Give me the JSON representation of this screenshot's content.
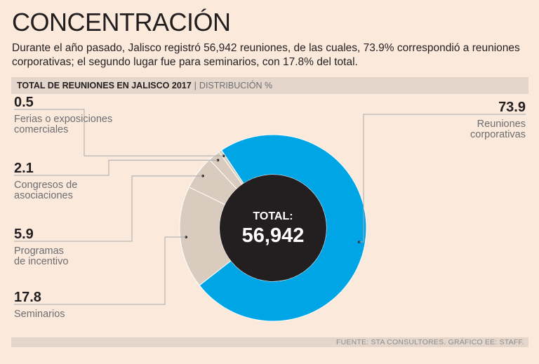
{
  "header": {
    "title": "CONCENTRACIÓN",
    "subtitle": "Durante el año pasado, Jalisco registró 56,942 reuniones, de las cuales, 73.9% correspondió a reuniones corporativas; el segundo lugar fue para seminarios, con 17.8% del total."
  },
  "bar": {
    "main": "TOTAL DE REUNIONES EN JALISCO 2017",
    "separator": "|",
    "sub": "DISTRIBUCIÓN %"
  },
  "footer": {
    "source": "FUENTE: STA CONSULTORES. GRÁFICO EE: STAFF."
  },
  "colors": {
    "primary": "#00a5e5",
    "secondary": "#d9cbbd",
    "center": "#231f20",
    "background": "#fbe9dc"
  },
  "chart_data": {
    "type": "pie",
    "variant": "donut",
    "title": "TOTAL DE REUNIONES EN JALISCO 2017",
    "subtitle": "DISTRIBUCIÓN %",
    "center_label": "TOTAL:",
    "center_value": "56,942",
    "slices": [
      {
        "name": "Reuniones corporativas",
        "label_lines": [
          "Reuniones",
          "corporativas"
        ],
        "value": 73.9,
        "value_text": "73.9"
      },
      {
        "name": "Seminarios",
        "label_lines": [
          "Seminarios"
        ],
        "value": 17.8,
        "value_text": "17.8"
      },
      {
        "name": "Programas de incentivo",
        "label_lines": [
          "Programas",
          "de incentivo"
        ],
        "value": 5.9,
        "value_text": "5.9"
      },
      {
        "name": "Congresos de asociaciones",
        "label_lines": [
          "Congresos de",
          "asociaciones"
        ],
        "value": 2.1,
        "value_text": "2.1"
      },
      {
        "name": "Ferias o exposiciones comerciales",
        "label_lines": [
          "Ferias o exposiciones",
          "comerciales"
        ],
        "value": 0.5,
        "value_text": "0.5"
      }
    ]
  }
}
